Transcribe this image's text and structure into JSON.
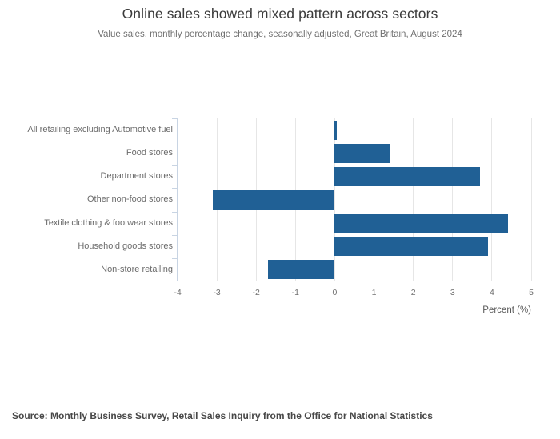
{
  "header": {
    "title": "Online sales showed mixed pattern across sectors",
    "subtitle": "Value sales, monthly percentage change, seasonally adjusted, Great Britain, August 2024"
  },
  "chart_data": {
    "type": "bar",
    "orientation": "horizontal",
    "title": "Online sales showed mixed pattern across sectors",
    "subtitle": "Value sales, monthly percentage change, seasonally adjusted, Great Britain, August 2024",
    "categories": [
      "All retailing excluding Automotive fuel",
      "Food stores",
      "Department stores",
      "Other non-food stores",
      "Textile clothing & footwear stores",
      "Household goods stores",
      "Non-store retailing"
    ],
    "values": [
      0.05,
      1.4,
      3.7,
      -3.1,
      4.4,
      3.9,
      -1.7
    ],
    "xlabel": "Percent (%)",
    "ylabel": "",
    "x_ticks": [
      -4,
      -3,
      -2,
      -1,
      0,
      1,
      2,
      3,
      4,
      5
    ],
    "xlim": [
      -4,
      5
    ],
    "grid": true,
    "legend": "none"
  },
  "footer": {
    "source": "Source: Monthly Business Survey, Retail Sales Inquiry from the Office for National Statistics"
  },
  "colors": {
    "bar": "#206095",
    "gridline": "#e6e6e6",
    "axis_line": "#c8d4e3",
    "title_text": "#3b3b3b",
    "subtitle_text": "#707070",
    "label_text": "#6b6b6b",
    "tick_text": "#707070",
    "source_text": "#474747"
  }
}
